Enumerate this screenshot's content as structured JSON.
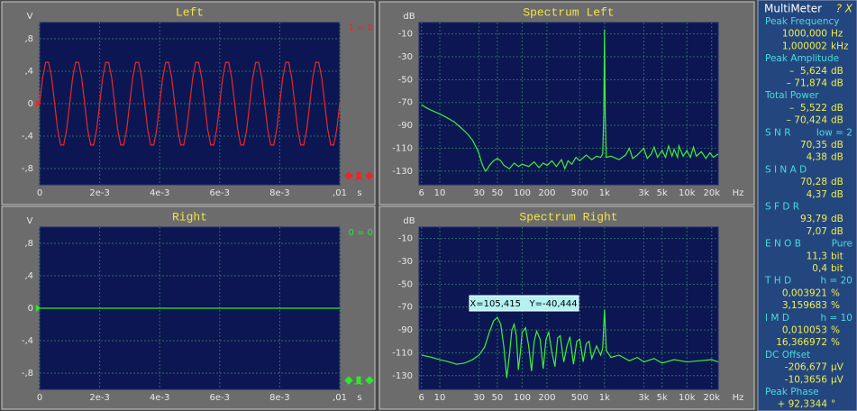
{
  "chart_data": [
    {
      "type": "line",
      "title": "Left",
      "y_unit": "V",
      "x_unit": "s",
      "readout": "1 = 0",
      "xscale": "linear",
      "grid": true,
      "color": "#e82828",
      "xlim": [
        0,
        0.01
      ],
      "ylim": [
        -1,
        1
      ],
      "xticks": [
        0,
        {
          "value": 0.002,
          "label": "2e-3"
        },
        {
          "value": 0.004,
          "label": "4e-3"
        },
        {
          "value": 0.006,
          "label": "6e-3"
        },
        {
          "value": 0.008,
          "label": "8e-3"
        },
        {
          "value": 0.01,
          "label": ",01"
        }
      ],
      "yticks": [
        {
          "value": 0.8,
          "label": ",8"
        },
        {
          "value": 0.4,
          "label": ",4"
        },
        0,
        {
          "value": -0.4,
          "label": "-,4"
        },
        {
          "value": -0.8,
          "label": "-,8"
        }
      ],
      "x": [
        0,
        0.0001,
        0.0002,
        0.0003,
        0.0004,
        0.0005,
        0.0006,
        0.0007,
        0.0008,
        0.0009,
        0.001,
        0.0011,
        0.0012,
        0.0013,
        0.0014,
        0.0015,
        0.0016,
        0.0017,
        0.0018,
        0.0019,
        0.002,
        0.0021,
        0.0022,
        0.0023,
        0.0024,
        0.0025,
        0.0026,
        0.0027,
        0.0028,
        0.0029,
        0.003,
        0.0031,
        0.0032,
        0.0033,
        0.0034,
        0.0035,
        0.0036,
        0.0037,
        0.0038,
        0.0039,
        0.004,
        0.0041,
        0.0042,
        0.0043,
        0.0044,
        0.0045,
        0.0046,
        0.0047,
        0.0048,
        0.0049,
        0.005,
        0.0051,
        0.0052,
        0.0053,
        0.0054,
        0.0055,
        0.0056,
        0.0057,
        0.0058,
        0.0059,
        0.006,
        0.0061,
        0.0062,
        0.0063,
        0.0064,
        0.0065,
        0.0066,
        0.0067,
        0.0068,
        0.0069,
        0.007,
        0.0071,
        0.0072,
        0.0073,
        0.0074,
        0.0075,
        0.0076,
        0.0077,
        0.0078,
        0.0079,
        0.008,
        0.0081,
        0.0082,
        0.0083,
        0.0084,
        0.0085,
        0.0086,
        0.0087,
        0.0088,
        0.0089,
        0.009,
        0.0091,
        0.0092,
        0.0093,
        0.0094,
        0.0095,
        0.0096,
        0.0097,
        0.0098,
        0.0099,
        0.01
      ],
      "values": [
        0,
        0.32,
        0.51,
        0.51,
        0.32,
        0,
        -0.32,
        -0.51,
        -0.51,
        -0.32,
        0,
        0.32,
        0.51,
        0.51,
        0.32,
        0,
        -0.32,
        -0.51,
        -0.51,
        -0.32,
        0,
        0.32,
        0.51,
        0.51,
        0.32,
        0,
        -0.32,
        -0.51,
        -0.51,
        -0.32,
        0,
        0.32,
        0.51,
        0.51,
        0.32,
        0,
        -0.32,
        -0.51,
        -0.51,
        -0.32,
        0,
        0.32,
        0.51,
        0.51,
        0.32,
        0,
        -0.32,
        -0.51,
        -0.51,
        -0.32,
        0,
        0.32,
        0.51,
        0.51,
        0.32,
        0,
        -0.32,
        -0.51,
        -0.51,
        -0.32,
        0,
        0.32,
        0.51,
        0.51,
        0.32,
        0,
        -0.32,
        -0.51,
        -0.51,
        -0.32,
        0,
        0.32,
        0.51,
        0.51,
        0.32,
        0,
        -0.32,
        -0.51,
        -0.51,
        -0.32,
        0,
        0.32,
        0.51,
        0.51,
        0.32,
        0,
        -0.32,
        -0.51,
        -0.51,
        -0.32,
        0,
        0.32,
        0.51,
        0.51,
        0.32,
        0,
        -0.32,
        -0.51,
        -0.51,
        -0.32,
        0
      ]
    },
    {
      "type": "line",
      "title": "Spectrum Left",
      "y_unit": "dB",
      "x_unit": "Hz",
      "xscale": "log",
      "grid": true,
      "color": "#3cf03c",
      "xlim": [
        5.6,
        24000
      ],
      "ylim": [
        -142,
        0
      ],
      "xticks": [
        6,
        10,
        30,
        50,
        100,
        200,
        500,
        {
          "value": 1000,
          "label": "1k"
        },
        {
          "value": 3000,
          "label": "3k"
        },
        {
          "value": 5000,
          "label": "5k"
        },
        {
          "value": 10000,
          "label": "10k"
        },
        {
          "value": 20000,
          "label": "20k"
        }
      ],
      "yticks": [
        -10,
        -30,
        -50,
        -70,
        -90,
        -110,
        -130
      ],
      "x": [
        6,
        7,
        8,
        10,
        12,
        15,
        18,
        20,
        22,
        25,
        28,
        30,
        32,
        34,
        36,
        38,
        40,
        45,
        50,
        55,
        60,
        70,
        80,
        90,
        100,
        120,
        140,
        160,
        180,
        200,
        230,
        260,
        300,
        330,
        360,
        400,
        450,
        500,
        600,
        700,
        800,
        900,
        950,
        980,
        1000,
        1020,
        1050,
        1200,
        1500,
        1800,
        2000,
        2200,
        2500,
        3000,
        3300,
        3700,
        4000,
        4400,
        5000,
        5500,
        6000,
        6600,
        7000,
        7700,
        8000,
        9000,
        10000,
        11000,
        12000,
        13000,
        15000,
        17000,
        19000,
        21000,
        24000
      ],
      "values": [
        -72,
        -75,
        -77,
        -80,
        -83,
        -87,
        -92,
        -95,
        -98,
        -103,
        -110,
        -115,
        -122,
        -127,
        -130,
        -128,
        -125,
        -121,
        -119,
        -121,
        -125,
        -128,
        -123,
        -126,
        -124,
        -126,
        -122,
        -127,
        -123,
        -125,
        -121,
        -126,
        -120,
        -128,
        -121,
        -124,
        -118,
        -121,
        -116,
        -120,
        -117,
        -118,
        -115,
        -80,
        -6,
        -80,
        -118,
        -117,
        -120,
        -116,
        -110,
        -119,
        -116,
        -110,
        -119,
        -115,
        -109,
        -118,
        -112,
        -118,
        -108,
        -117,
        -111,
        -118,
        -108,
        -117,
        -112,
        -118,
        -109,
        -117,
        -113,
        -119,
        -114,
        -118,
        -115
      ]
    },
    {
      "type": "line",
      "title": "Right",
      "y_unit": "V",
      "x_unit": "s",
      "readout": "0 = 0",
      "xscale": "linear",
      "grid": true,
      "color": "#2ee82e",
      "xlim": [
        0,
        0.01
      ],
      "ylim": [
        -1,
        1
      ],
      "xticks": [
        0,
        {
          "value": 0.002,
          "label": "2e-3"
        },
        {
          "value": 0.004,
          "label": "4e-3"
        },
        {
          "value": 0.006,
          "label": "6e-3"
        },
        {
          "value": 0.008,
          "label": "8e-3"
        },
        {
          "value": 0.01,
          "label": ",01"
        }
      ],
      "yticks": [
        {
          "value": 0.8,
          "label": ",8"
        },
        {
          "value": 0.4,
          "label": ",4"
        },
        0,
        {
          "value": -0.4,
          "label": "-,4"
        },
        {
          "value": -0.8,
          "label": "-,8"
        }
      ],
      "x": [
        0,
        0.01
      ],
      "values": [
        0,
        0
      ]
    },
    {
      "type": "line",
      "title": "Spectrum Right",
      "y_unit": "dB",
      "x_unit": "Hz",
      "xscale": "log",
      "grid": true,
      "color": "#3cf03c",
      "annotation": "X=105,415   Y=-40,444",
      "xlim": [
        5.6,
        24000
      ],
      "ylim": [
        -142,
        0
      ],
      "xticks": [
        6,
        10,
        30,
        50,
        100,
        200,
        500,
        {
          "value": 1000,
          "label": "1k"
        },
        {
          "value": 3000,
          "label": "3k"
        },
        {
          "value": 5000,
          "label": "5k"
        },
        {
          "value": 10000,
          "label": "10k"
        },
        {
          "value": 20000,
          "label": "20k"
        }
      ],
      "yticks": [
        -10,
        -30,
        -50,
        -70,
        -90,
        -110,
        -130
      ],
      "x": [
        6,
        8,
        10,
        13,
        16,
        20,
        25,
        30,
        35,
        40,
        45,
        50,
        55,
        60,
        65,
        70,
        75,
        80,
        85,
        90,
        95,
        100,
        110,
        120,
        130,
        140,
        150,
        165,
        180,
        195,
        210,
        230,
        250,
        270,
        290,
        320,
        350,
        380,
        420,
        460,
        500,
        550,
        600,
        650,
        700,
        800,
        900,
        950,
        1000,
        1050,
        1200,
        1500,
        2000,
        2500,
        3000,
        4000,
        5000,
        7000,
        10000,
        14000,
        20000,
        24000
      ],
      "values": [
        -112,
        -114,
        -116,
        -118,
        -120,
        -119,
        -116,
        -112,
        -105,
        -92,
        -82,
        -79,
        -85,
        -105,
        -132,
        -112,
        -90,
        -85,
        -95,
        -125,
        -110,
        -92,
        -88,
        -104,
        -126,
        -100,
        -91,
        -98,
        -124,
        -98,
        -92,
        -110,
        -122,
        -97,
        -95,
        -118,
        -104,
        -96,
        -120,
        -100,
        -98,
        -118,
        -102,
        -100,
        -115,
        -104,
        -112,
        -106,
        -72,
        -108,
        -114,
        -112,
        -117,
        -114,
        -118,
        -115,
        -119,
        -116,
        -118,
        -117,
        -116,
        -118
      ]
    }
  ],
  "multimeter": {
    "title": "MultiMeter",
    "buttons": "? X",
    "groups": [
      {
        "label": [
          "Peak Frequency"
        ],
        "values": [
          [
            "1000,000",
            "Hz"
          ],
          [
            "1,000002",
            "kHz"
          ]
        ]
      },
      {
        "label": [
          "Peak Amplitude"
        ],
        "values": [
          [
            "–  5,624",
            "dB"
          ],
          [
            "– 71,874",
            "dB"
          ]
        ]
      },
      {
        "label": [
          "Total Power"
        ],
        "values": [
          [
            "–  5,522",
            "dB"
          ],
          [
            "– 70,424",
            "dB"
          ]
        ]
      },
      {
        "label": [
          "S N R",
          "low = 2"
        ],
        "values": [
          [
            "70,35",
            "dB"
          ],
          [
            "4,38",
            "dB"
          ]
        ]
      },
      {
        "label": [
          "S I N A D"
        ],
        "values": [
          [
            "70,28",
            "dB"
          ],
          [
            "4,37",
            "dB"
          ]
        ]
      },
      {
        "label": [
          "S F D R"
        ],
        "values": [
          [
            "93,79",
            "dB"
          ],
          [
            "7,07",
            "dB"
          ]
        ]
      },
      {
        "label": [
          "E N O B",
          "Pure"
        ],
        "values": [
          [
            "11,3",
            "bit"
          ],
          [
            "0,4",
            "bit"
          ]
        ]
      },
      {
        "label": [
          "T H D",
          "h = 20"
        ],
        "values": [
          [
            "0,003921",
            "%"
          ],
          [
            "3,159683",
            "%"
          ]
        ]
      },
      {
        "label": [
          "I M D",
          "h = 10"
        ],
        "values": [
          [
            "0,010053",
            "%"
          ],
          [
            "16,366972",
            "%"
          ]
        ]
      },
      {
        "label": [
          "DC Offset"
        ],
        "values": [
          [
            "-206,677",
            "µV"
          ],
          [
            "-10,3656",
            "µV"
          ]
        ]
      },
      {
        "label": [
          "Peak Phase"
        ],
        "values": [
          [
            "+ 92,3344",
            "°"
          ]
        ]
      }
    ]
  }
}
